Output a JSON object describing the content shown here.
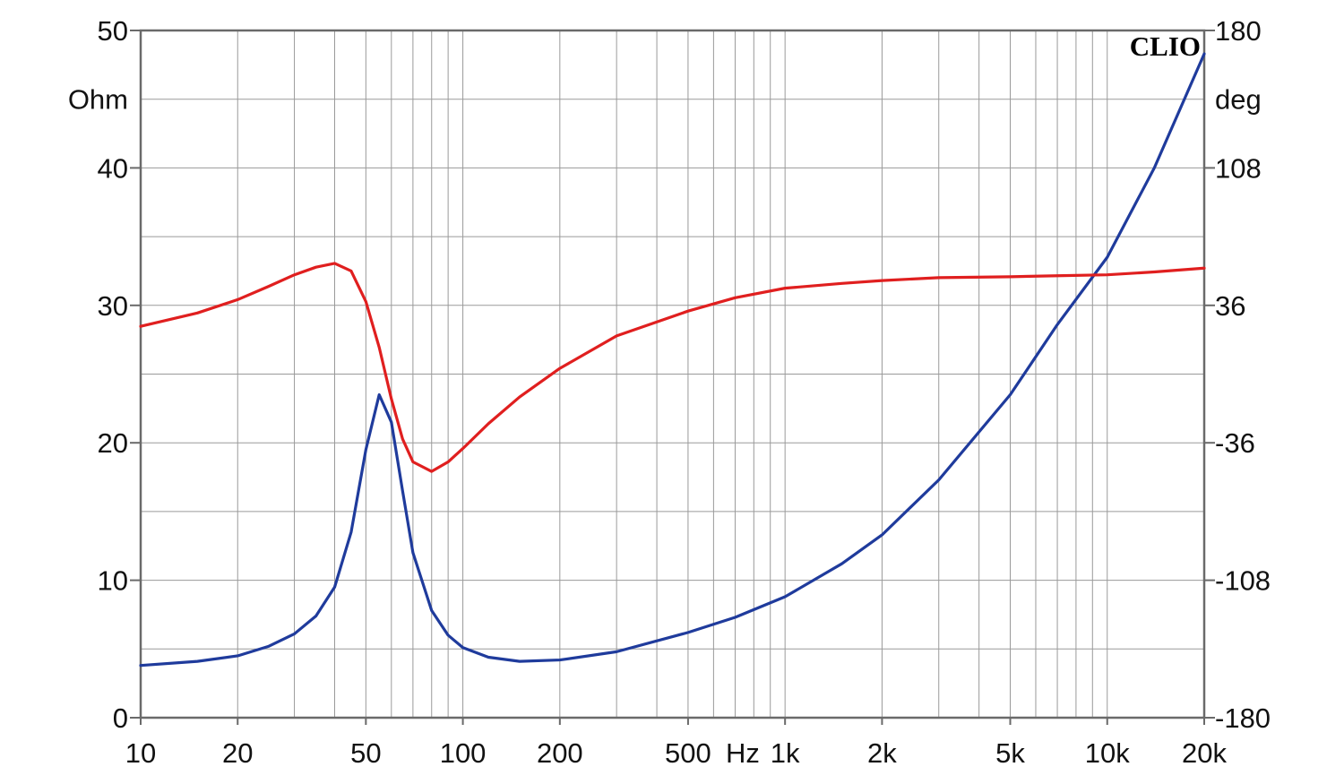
{
  "chart_data": {
    "type": "line",
    "watermark": "CLIO",
    "x_axis": {
      "scale": "log",
      "range": [
        10,
        20000
      ],
      "ticks": [
        {
          "value": 10,
          "label": "10"
        },
        {
          "value": 20,
          "label": "20"
        },
        {
          "value": 50,
          "label": "50"
        },
        {
          "value": 100,
          "label": "100"
        },
        {
          "value": 200,
          "label": "200"
        },
        {
          "value": 500,
          "label": "500"
        },
        {
          "value": 1000,
          "label": "1k"
        },
        {
          "value": 2000,
          "label": "2k"
        },
        {
          "value": 5000,
          "label": "5k"
        },
        {
          "value": 10000,
          "label": "10k"
        },
        {
          "value": 20000,
          "label": "20k"
        }
      ],
      "unit": "Hz"
    },
    "y_left": {
      "label": "Ohm",
      "range": [
        0,
        50
      ],
      "ticks": [
        "0",
        "10",
        "20",
        "30",
        "40",
        "50"
      ],
      "tick_values": [
        0,
        10,
        20,
        30,
        40,
        50
      ]
    },
    "y_right": {
      "label": "deg",
      "range": [
        -180,
        180
      ],
      "ticks": [
        "-180",
        "-108",
        "-36",
        "36",
        "108",
        "180"
      ],
      "tick_values": [
        -180,
        -108,
        -36,
        36,
        108,
        180
      ]
    },
    "grid": true,
    "series": [
      {
        "color": "#1f3b9c",
        "axis": "left",
        "points": [
          [
            10,
            3.8
          ],
          [
            15,
            4.1
          ],
          [
            20,
            4.5
          ],
          [
            25,
            5.2
          ],
          [
            30,
            6.1
          ],
          [
            35,
            7.4
          ],
          [
            40,
            9.5
          ],
          [
            45,
            13.5
          ],
          [
            50,
            19.5
          ],
          [
            55,
            23.5
          ],
          [
            60,
            21.5
          ],
          [
            65,
            16.5
          ],
          [
            70,
            12.0
          ],
          [
            80,
            7.8
          ],
          [
            90,
            6.0
          ],
          [
            100,
            5.1
          ],
          [
            120,
            4.4
          ],
          [
            150,
            4.1
          ],
          [
            200,
            4.2
          ],
          [
            300,
            4.8
          ],
          [
            500,
            6.2
          ],
          [
            700,
            7.3
          ],
          [
            1000,
            8.8
          ],
          [
            1500,
            11.2
          ],
          [
            2000,
            13.3
          ],
          [
            3000,
            17.3
          ],
          [
            5000,
            23.5
          ],
          [
            7000,
            28.6
          ],
          [
            10000,
            33.5
          ],
          [
            14000,
            40.0
          ],
          [
            20000,
            48.3
          ]
        ]
      },
      {
        "color": "#e01f1f",
        "axis": "right",
        "points": [
          [
            10,
            25
          ],
          [
            15,
            32
          ],
          [
            20,
            39
          ],
          [
            25,
            46
          ],
          [
            30,
            52
          ],
          [
            35,
            56
          ],
          [
            40,
            58
          ],
          [
            45,
            54
          ],
          [
            50,
            38
          ],
          [
            55,
            14
          ],
          [
            60,
            -13
          ],
          [
            65,
            -34
          ],
          [
            70,
            -46
          ],
          [
            80,
            -51
          ],
          [
            90,
            -46
          ],
          [
            100,
            -39
          ],
          [
            120,
            -26
          ],
          [
            150,
            -12
          ],
          [
            200,
            3
          ],
          [
            300,
            20
          ],
          [
            500,
            33
          ],
          [
            700,
            40
          ],
          [
            1000,
            45
          ],
          [
            1500,
            47.5
          ],
          [
            2000,
            49
          ],
          [
            3000,
            50.5
          ],
          [
            5000,
            51
          ],
          [
            7000,
            51.5
          ],
          [
            10000,
            52
          ],
          [
            14000,
            53.5
          ],
          [
            20000,
            55.5
          ]
        ]
      }
    ]
  }
}
